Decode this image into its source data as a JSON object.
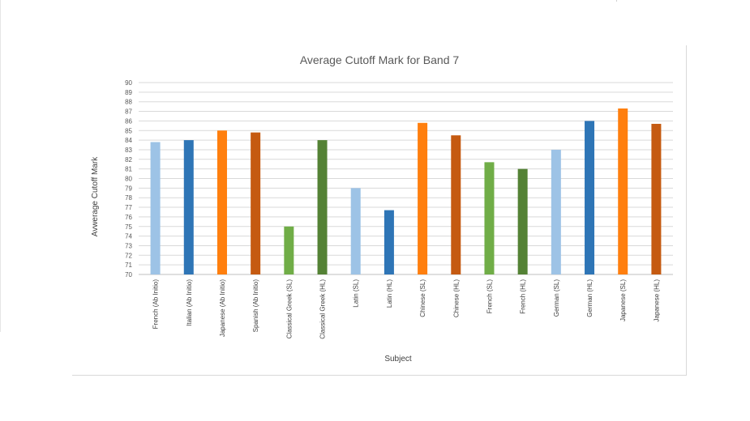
{
  "chart_data": {
    "type": "bar",
    "title": "Average Cutoff Mark for Band 7",
    "xlabel": "Subject",
    "ylabel": "Avwerage Cutoff Mark",
    "ylim": [
      70,
      90
    ],
    "ytick_step": 1,
    "grid": true,
    "legend": "none",
    "categories": [
      "French (Ab Initio)",
      "Italian (Ab Initio)",
      "Japanese (Ab Initio)",
      "Spanish (Ab Initio)",
      "Classical Greek (SL)",
      "Classical Greek (HL)",
      "Latin (SL)",
      "Latin (HL)",
      "Chinese (SL)",
      "Chinese (HL)",
      "French (SL)",
      "French (HL)",
      "German (SL)",
      "German (HL)",
      "Japanese (SL)",
      "Japanese (HL)"
    ],
    "values": [
      83.8,
      84.0,
      85.0,
      84.8,
      75.0,
      84.0,
      79.0,
      76.7,
      85.8,
      84.5,
      81.7,
      81.0,
      83.0,
      86.0,
      87.3,
      85.7
    ],
    "colors": [
      "#9dc3e6",
      "#2e75b6",
      "#ff7f0e",
      "#c55a11",
      "#70ad47",
      "#548235",
      "#9dc3e6",
      "#2e75b6",
      "#ff7f0e",
      "#c55a11",
      "#70ad47",
      "#548235",
      "#9dc3e6",
      "#2e75b6",
      "#ff7f0e",
      "#c55a11"
    ]
  }
}
